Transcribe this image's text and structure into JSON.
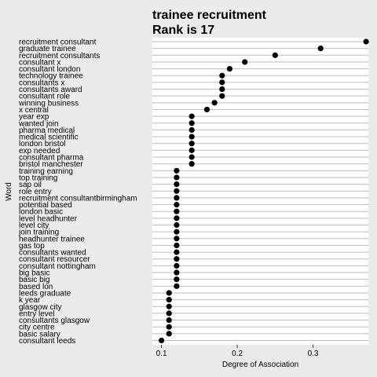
{
  "chart_data": {
    "type": "scatter",
    "title": "trainee recruitment",
    "subtitle": "Rank is 17",
    "xlabel": "Degree of Association",
    "ylabel": "Word",
    "xlim": [
      0.088,
      0.373
    ],
    "xticks": [
      0.1,
      0.2,
      0.3
    ],
    "xtick_labels": [
      "0.1",
      "0.2",
      "0.3"
    ],
    "grid": true,
    "points": [
      {
        "word": "recruitment consultant",
        "value": 0.37
      },
      {
        "word": "graduate trainee",
        "value": 0.31
      },
      {
        "word": "recruitment consultants",
        "value": 0.25
      },
      {
        "word": "consultant x",
        "value": 0.21
      },
      {
        "word": "consultant london",
        "value": 0.19
      },
      {
        "word": "technology trainee",
        "value": 0.18
      },
      {
        "word": "consultants x",
        "value": 0.18
      },
      {
        "word": "consultants award",
        "value": 0.18
      },
      {
        "word": "consultant role",
        "value": 0.18
      },
      {
        "word": "winning business",
        "value": 0.17
      },
      {
        "word": "x central",
        "value": 0.16
      },
      {
        "word": "year exp",
        "value": 0.14
      },
      {
        "word": "wanted join",
        "value": 0.14
      },
      {
        "word": "pharma medical",
        "value": 0.14
      },
      {
        "word": "medical scientific",
        "value": 0.14
      },
      {
        "word": "london bristol",
        "value": 0.14
      },
      {
        "word": "exp needed",
        "value": 0.14
      },
      {
        "word": "consultant pharma",
        "value": 0.14
      },
      {
        "word": "bristol manchester",
        "value": 0.14
      },
      {
        "word": "training earning",
        "value": 0.12
      },
      {
        "word": "top training",
        "value": 0.12
      },
      {
        "word": "sap oil",
        "value": 0.12
      },
      {
        "word": "role entry",
        "value": 0.12
      },
      {
        "word": "recruitment consultantbirmingham",
        "value": 0.12
      },
      {
        "word": "potential based",
        "value": 0.12
      },
      {
        "word": "london basic",
        "value": 0.12
      },
      {
        "word": "level headhunter",
        "value": 0.12
      },
      {
        "word": "level city",
        "value": 0.12
      },
      {
        "word": "join training",
        "value": 0.12
      },
      {
        "word": "headhunter trainee",
        "value": 0.12
      },
      {
        "word": "gas top",
        "value": 0.12
      },
      {
        "word": "consultants wanted",
        "value": 0.12
      },
      {
        "word": "consultant resourcer",
        "value": 0.12
      },
      {
        "word": "consultant nottingham",
        "value": 0.12
      },
      {
        "word": "big basic",
        "value": 0.12
      },
      {
        "word": "basic big",
        "value": 0.12
      },
      {
        "word": "based lon",
        "value": 0.12
      },
      {
        "word": "leeds graduate",
        "value": 0.11
      },
      {
        "word": "k year",
        "value": 0.11
      },
      {
        "word": "glasgow city",
        "value": 0.11
      },
      {
        "word": "entry level",
        "value": 0.11
      },
      {
        "word": "consultants glasgow",
        "value": 0.11
      },
      {
        "word": "city centre",
        "value": 0.11
      },
      {
        "word": "basic salary",
        "value": 0.11
      },
      {
        "word": "consultant leeds",
        "value": 0.1
      }
    ]
  },
  "colors": {
    "background": "#ebebeb",
    "panel": "#ffffff",
    "gridline": "#bebebe",
    "point": "#000000"
  }
}
